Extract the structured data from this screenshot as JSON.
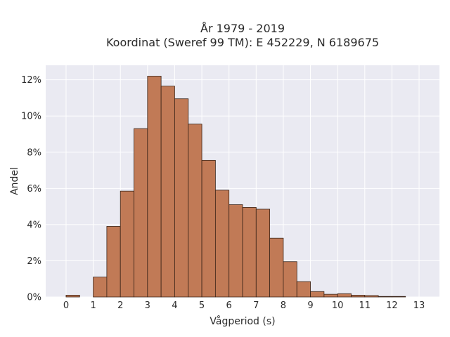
{
  "chart_data": {
    "type": "bar",
    "title_lines": [
      "År 1979 - 2019",
      "Koordinat (Sweref 99 TM): E 452229, N 6189675"
    ],
    "xlabel": "Vågperiod (s)",
    "ylabel": "Andel",
    "bin_width": 0.5,
    "bins": [
      {
        "x": 0.0,
        "y": 0.1
      },
      {
        "x": 1.0,
        "y": 1.1
      },
      {
        "x": 1.5,
        "y": 3.9
      },
      {
        "x": 2.0,
        "y": 5.85
      },
      {
        "x": 2.5,
        "y": 9.3
      },
      {
        "x": 3.0,
        "y": 12.2
      },
      {
        "x": 3.5,
        "y": 11.65
      },
      {
        "x": 4.0,
        "y": 10.95
      },
      {
        "x": 4.5,
        "y": 9.55
      },
      {
        "x": 5.0,
        "y": 7.55
      },
      {
        "x": 5.5,
        "y": 5.9
      },
      {
        "x": 6.0,
        "y": 5.1
      },
      {
        "x": 6.5,
        "y": 4.95
      },
      {
        "x": 7.0,
        "y": 4.85
      },
      {
        "x": 7.5,
        "y": 3.25
      },
      {
        "x": 8.0,
        "y": 1.95
      },
      {
        "x": 8.5,
        "y": 0.85
      },
      {
        "x": 9.0,
        "y": 0.3
      },
      {
        "x": 9.5,
        "y": 0.15
      },
      {
        "x": 10.0,
        "y": 0.18
      },
      {
        "x": 10.5,
        "y": 0.1
      },
      {
        "x": 11.0,
        "y": 0.08
      },
      {
        "x": 11.5,
        "y": 0.03
      },
      {
        "x": 12.0,
        "y": 0.03
      }
    ],
    "x_ticks": [
      0,
      1,
      2,
      3,
      4,
      5,
      6,
      7,
      8,
      9,
      10,
      11,
      12,
      13
    ],
    "x_tick_labels": [
      "0",
      "1",
      "2",
      "3",
      "4",
      "5",
      "6",
      "7",
      "8",
      "9",
      "10",
      "11",
      "12",
      "13"
    ],
    "y_ticks": [
      0,
      2,
      4,
      6,
      8,
      10,
      12
    ],
    "y_tick_labels": [
      "0%",
      "2%",
      "4%",
      "6%",
      "8%",
      "10%",
      "12%"
    ],
    "xlim": [
      -0.75,
      13.75
    ],
    "ylim": [
      0,
      12.8
    ],
    "grid": true,
    "colors": {
      "bar_fill": "#c17a56",
      "bar_edge": "#3a2418",
      "plot_background": "#eaeaf2",
      "grid": "#ffffff"
    }
  }
}
